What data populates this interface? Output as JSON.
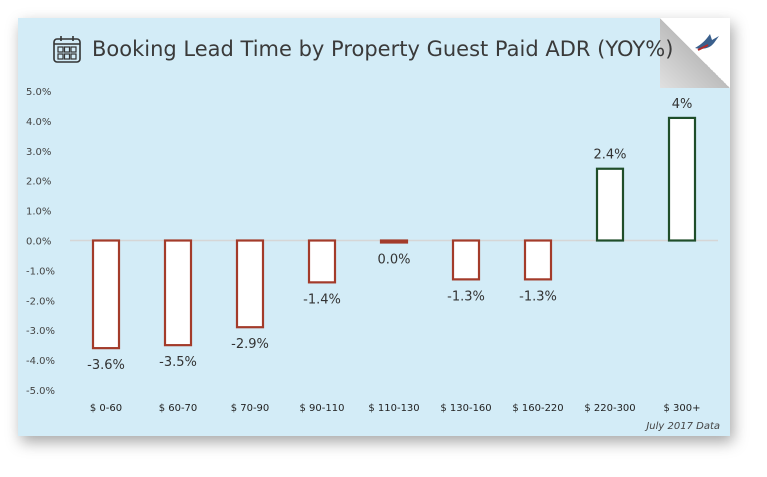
{
  "chart_data": {
    "type": "bar",
    "title": "Booking Lead Time by Property Guest Paid ADR (YOY%)",
    "categories": [
      "$ 0-60",
      "$ 60-70",
      "$ 70-90",
      "$ 90-110",
      "$ 110-130",
      "$ 130-160",
      "$ 160-220",
      "$ 220-300",
      "$ 300+"
    ],
    "values": [
      -3.6,
      -3.5,
      -2.9,
      -1.4,
      -0.05,
      -1.3,
      -1.3,
      2.4,
      4.1
    ],
    "data_labels": [
      "-3.6%",
      "-3.5%",
      "-2.9%",
      "-1.4%",
      "0.0%",
      "-1.3%",
      "-1.3%",
      "2.4%",
      "4%"
    ],
    "ylim": [
      -5.0,
      5.0
    ],
    "yticks": [
      "5.0%",
      "4.0%",
      "3.0%",
      "2.0%",
      "1.0%",
      "0.0%",
      "-1.0%",
      "-2.0%",
      "-3.0%",
      "-4.0%",
      "-5.0%"
    ],
    "grid": false,
    "colors": {
      "negative": "#a33b2a",
      "positive": "#1f4e2a",
      "fill": "#ffffff",
      "background": "#d3ecf7"
    }
  },
  "footnote": "July 2017 Data",
  "icons": {
    "title": "calendar-icon",
    "corner": "bird-logo-icon"
  }
}
